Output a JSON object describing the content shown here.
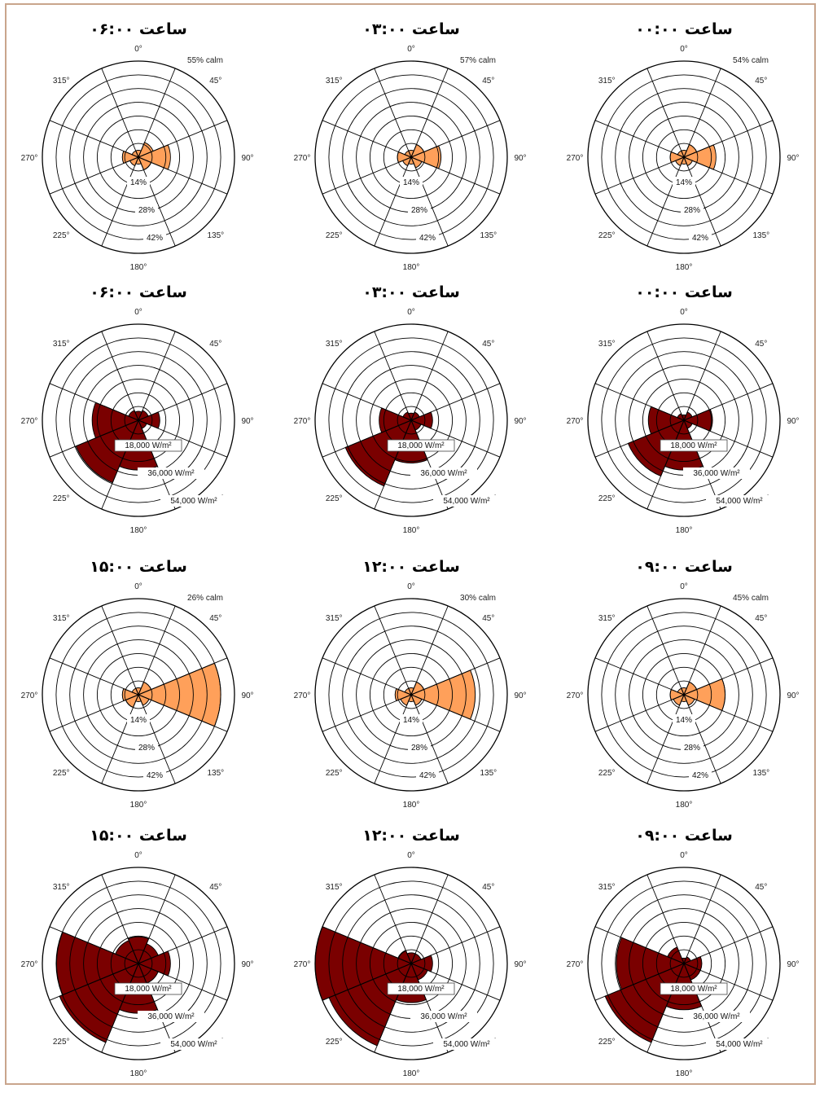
{
  "colors": {
    "frequency_fill": "#ffa05a",
    "energy_fill": "#7a0000",
    "frame": "#c9a58c"
  },
  "direction_labels": [
    "0°",
    "45°",
    "90°",
    "135°",
    "180°",
    "225°",
    "270°",
    "315°"
  ],
  "chart_data": [
    {
      "type": "polar-rose",
      "title": "ساعت ۰۶:۰۰",
      "calm": "55% calm",
      "ring_labels": [
        "14%",
        "28%",
        "42%"
      ],
      "values": [
        3,
        7,
        14,
        6,
        3,
        4,
        7,
        3
      ],
      "fill": "frequency"
    },
    {
      "type": "polar-rose",
      "title": "ساعت ۰۳:۰۰",
      "calm": "57% calm",
      "ring_labels": [
        "14%",
        "28%",
        "42%"
      ],
      "values": [
        3,
        6,
        13,
        5,
        3,
        4,
        6,
        3
      ],
      "fill": "frequency"
    },
    {
      "type": "polar-rose",
      "title": "ساعت ۰۰:۰۰",
      "calm": "54% calm",
      "ring_labels": [
        "14%",
        "28%",
        "42%"
      ],
      "values": [
        3,
        6,
        14,
        4,
        3,
        4,
        6,
        3
      ],
      "fill": "frequency"
    },
    {
      "type": "polar-rose",
      "title": "ساعت ۰۶:۰۰",
      "calm": "",
      "ring_labels": [
        "18,000 W/m²",
        "36,000 W/m²",
        "54,000 W/m²"
      ],
      "values": [
        5,
        6,
        12,
        5,
        28,
        38,
        26,
        6
      ],
      "fill": "energy"
    },
    {
      "type": "polar-rose",
      "title": "ساعت ۰۳:۰۰",
      "calm": "",
      "ring_labels": [
        "18,000 W/m²",
        "36,000 W/m²",
        "54,000 W/m²"
      ],
      "values": [
        4,
        5,
        12,
        6,
        24,
        40,
        18,
        5
      ],
      "fill": "energy"
    },
    {
      "type": "polar-rose",
      "title": "ساعت ۰۰:۰۰",
      "calm": "",
      "ring_labels": [
        "18,000 W/m²",
        "36,000 W/m²",
        "54,000 W/m²"
      ],
      "values": [
        3,
        5,
        16,
        5,
        28,
        34,
        20,
        4
      ],
      "fill": "energy"
    },
    {
      "type": "polar-rose",
      "title": "ساعت ۱۵:۰۰",
      "calm": "26% calm",
      "ring_labels": [
        "14%",
        "28%",
        "42%"
      ],
      "values": [
        3,
        6,
        36,
        5,
        3,
        6,
        7,
        3
      ],
      "fill": "frequency"
    },
    {
      "type": "polar-rose",
      "title": "ساعت ۱۲:۰۰",
      "calm": "30% calm",
      "ring_labels": [
        "14%",
        "28%",
        "42%"
      ],
      "values": [
        3,
        6,
        28,
        5,
        3,
        5,
        7,
        3
      ],
      "fill": "frequency"
    },
    {
      "type": "polar-rose",
      "title": "ساعت ۰۹:۰۰",
      "calm": "45% calm",
      "ring_labels": [
        "14%",
        "28%",
        "42%"
      ],
      "values": [
        3,
        6,
        18,
        5,
        3,
        5,
        6,
        3
      ],
      "fill": "frequency"
    },
    {
      "type": "polar-rose",
      "title": "ساعت ۱۵:۰۰",
      "calm": "",
      "ring_labels": [
        "18,000 W/m²",
        "36,000 W/m²",
        "54,000 W/m²"
      ],
      "values": [
        15,
        12,
        18,
        12,
        28,
        48,
        46,
        14
      ],
      "fill": "energy"
    },
    {
      "type": "polar-rose",
      "title": "ساعت ۱۲:۰۰",
      "calm": "",
      "ring_labels": [
        "18,000 W/m²",
        "36,000 W/m²",
        "54,000 W/m²"
      ],
      "values": [
        6,
        6,
        12,
        10,
        22,
        50,
        55,
        8
      ],
      "fill": "energy"
    },
    {
      "type": "polar-rose",
      "title": "ساعت ۰۹:۰۰",
      "calm": "",
      "ring_labels": [
        "18,000 W/m²",
        "36,000 W/m²",
        "54,000 W/m²"
      ],
      "values": [
        3,
        4,
        10,
        10,
        26,
        48,
        38,
        10
      ],
      "fill": "energy"
    }
  ]
}
